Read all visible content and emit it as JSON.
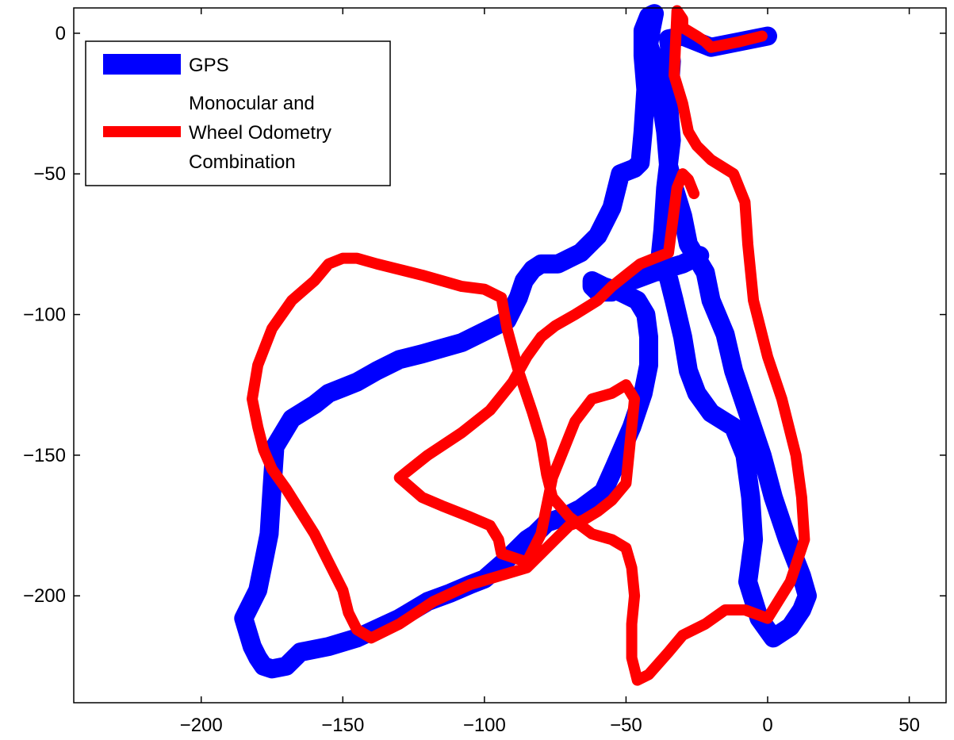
{
  "chart_data": {
    "type": "line",
    "title": "",
    "xlabel": "",
    "ylabel": "",
    "xlim": [
      -245,
      63
    ],
    "ylim": [
      -238,
      9
    ],
    "xticks": [
      -200,
      -150,
      -100,
      -50,
      0,
      50
    ],
    "yticks": [
      0,
      -50,
      -100,
      -150,
      -200
    ],
    "xtick_labels": [
      "−200",
      "−150",
      "−100",
      "−50",
      "0",
      "50"
    ],
    "ytick_labels": [
      "0",
      "−50",
      "−100",
      "−150",
      "−200"
    ],
    "grid": false,
    "legend": {
      "position": "top-left",
      "entries": [
        {
          "lines": [
            "GPS"
          ]
        },
        {
          "lines": [
            "Monocular and",
            "Wheel Odometry",
            "Combination"
          ]
        }
      ]
    },
    "series": [
      {
        "name": "GPS",
        "color": "#0000ff",
        "x": [
          0,
          -10,
          -20,
          -25,
          -30,
          -35,
          -34,
          -35,
          -34,
          -36,
          -37,
          -38,
          -35,
          -33,
          -30,
          -28,
          -25,
          -20,
          -12,
          -8,
          -6,
          -5,
          -7,
          -3,
          2,
          8,
          12,
          14,
          12,
          7,
          2,
          -2,
          -7,
          -12,
          -15,
          -20,
          -22,
          -25,
          -28,
          -30,
          -33,
          -35,
          -36,
          -38,
          -40,
          -42,
          -41,
          -40,
          -42,
          -44,
          -44,
          -43,
          -44,
          -45,
          -47,
          -52,
          -55,
          -60,
          -66,
          -70,
          -72,
          -74,
          -77,
          -80,
          -83,
          -86,
          -88,
          -92,
          -100,
          -108,
          -115,
          -122,
          -130,
          -138,
          -145,
          -150,
          -155,
          -160,
          -168,
          -174,
          -175,
          -176,
          -178,
          -180,
          -185,
          -182,
          -180,
          -178,
          -175,
          -170,
          -165,
          -155,
          -145,
          -130,
          -120,
          -112,
          -105,
          -100,
          -92,
          -85,
          -82,
          -80,
          -78,
          -72,
          -66,
          -58,
          -54,
          -48,
          -44,
          -42,
          -42,
          -43,
          -46,
          -52,
          -58,
          -62,
          -62,
          -60,
          -55,
          -48,
          -40,
          -30,
          -24
        ],
        "y": [
          -1,
          -3,
          -5,
          -3,
          -1,
          -2,
          -10,
          -25,
          -38,
          -55,
          -70,
          -80,
          -87,
          -95,
          -108,
          -120,
          -128,
          -135,
          -140,
          -150,
          -165,
          -180,
          -195,
          -208,
          -215,
          -211,
          -205,
          -200,
          -193,
          -180,
          -165,
          -150,
          -135,
          -120,
          -107,
          -95,
          -85,
          -80,
          -75,
          -65,
          -55,
          -47,
          -35,
          -22,
          -10,
          -4,
          2,
          7,
          6,
          1,
          -8,
          -20,
          -35,
          -46,
          -48,
          -50,
          -62,
          -72,
          -78,
          -80,
          -81,
          -82,
          -82,
          -82,
          -84,
          -88,
          -94,
          -102,
          -106,
          -110,
          -112,
          -114,
          -116,
          -120,
          -124,
          -126,
          -128,
          -132,
          -137,
          -147,
          -162,
          -178,
          -188,
          -198,
          -208,
          -218,
          -222,
          -225,
          -226,
          -225,
          -220,
          -218,
          -215,
          -208,
          -202,
          -199,
          -196,
          -194,
          -187,
          -180,
          -178,
          -176,
          -174,
          -172,
          -169,
          -163,
          -154,
          -140,
          -128,
          -118,
          -108,
          -100,
          -95,
          -92,
          -90,
          -88,
          -90,
          -92,
          -92,
          -88,
          -85,
          -82,
          -79
        ]
      },
      {
        "name": "Monocular and Wheel Odometry Combination",
        "color": "#ff0000",
        "x": [
          -2,
          -10,
          -20,
          -22,
          -25,
          -30,
          -30,
          -32,
          -33,
          -30,
          -28,
          -25,
          -20,
          -12,
          -8,
          -7,
          -5,
          0,
          5,
          10,
          12,
          13,
          8,
          0,
          -8,
          -15,
          -22,
          -30,
          -35,
          -42,
          -46,
          -48,
          -48,
          -47,
          -48,
          -50,
          -55,
          -62,
          -70,
          -76,
          -78,
          -80,
          -83,
          -88,
          -92,
          -94,
          -100,
          -108,
          -115,
          -122,
          -130,
          -138,
          -145,
          -150,
          -155,
          -160,
          -168,
          -175,
          -180,
          -182,
          -180,
          -178,
          -175,
          -170,
          -165,
          -160,
          -155,
          -150,
          -148,
          -145,
          -140,
          -130,
          -118,
          -105,
          -95,
          -85,
          -80,
          -75,
          -70,
          -65,
          -60,
          -55,
          -50,
          -49,
          -48,
          -47,
          -50,
          -55,
          -62,
          -68,
          -72,
          -76,
          -78,
          -80,
          -85,
          -94,
          -95,
          -98,
          -105,
          -115,
          -122,
          -130,
          -120,
          -108,
          -98,
          -90,
          -85,
          -80,
          -75,
          -68,
          -60,
          -55,
          -50,
          -45,
          -40,
          -35,
          -32,
          -30,
          -28,
          -26
        ],
        "y": [
          -1,
          -3,
          -5,
          -3,
          -1,
          2,
          5,
          8,
          -15,
          -25,
          -35,
          -40,
          -45,
          -50,
          -60,
          -75,
          -95,
          -115,
          -130,
          -150,
          -165,
          -180,
          -195,
          -208,
          -205,
          -205,
          -210,
          -214,
          -220,
          -228,
          -230,
          -222,
          -210,
          -200,
          -190,
          -183,
          -180,
          -178,
          -172,
          -165,
          -157,
          -145,
          -135,
          -120,
          -105,
          -94,
          -91,
          -90,
          -88,
          -86,
          -84,
          -82,
          -80,
          -80,
          -82,
          -88,
          -95,
          -105,
          -118,
          -130,
          -140,
          -148,
          -155,
          -162,
          -170,
          -178,
          -188,
          -198,
          -206,
          -212,
          -215,
          -210,
          -202,
          -196,
          -193,
          -190,
          -185,
          -180,
          -175,
          -173,
          -170,
          -166,
          -160,
          -150,
          -140,
          -130,
          -125,
          -128,
          -130,
          -138,
          -148,
          -158,
          -168,
          -178,
          -188,
          -185,
          -180,
          -175,
          -172,
          -168,
          -165,
          -158,
          -150,
          -142,
          -134,
          -124,
          -115,
          -108,
          -104,
          -100,
          -95,
          -90,
          -86,
          -82,
          -80,
          -78,
          -55,
          -50,
          -52,
          -57
        ]
      }
    ]
  }
}
